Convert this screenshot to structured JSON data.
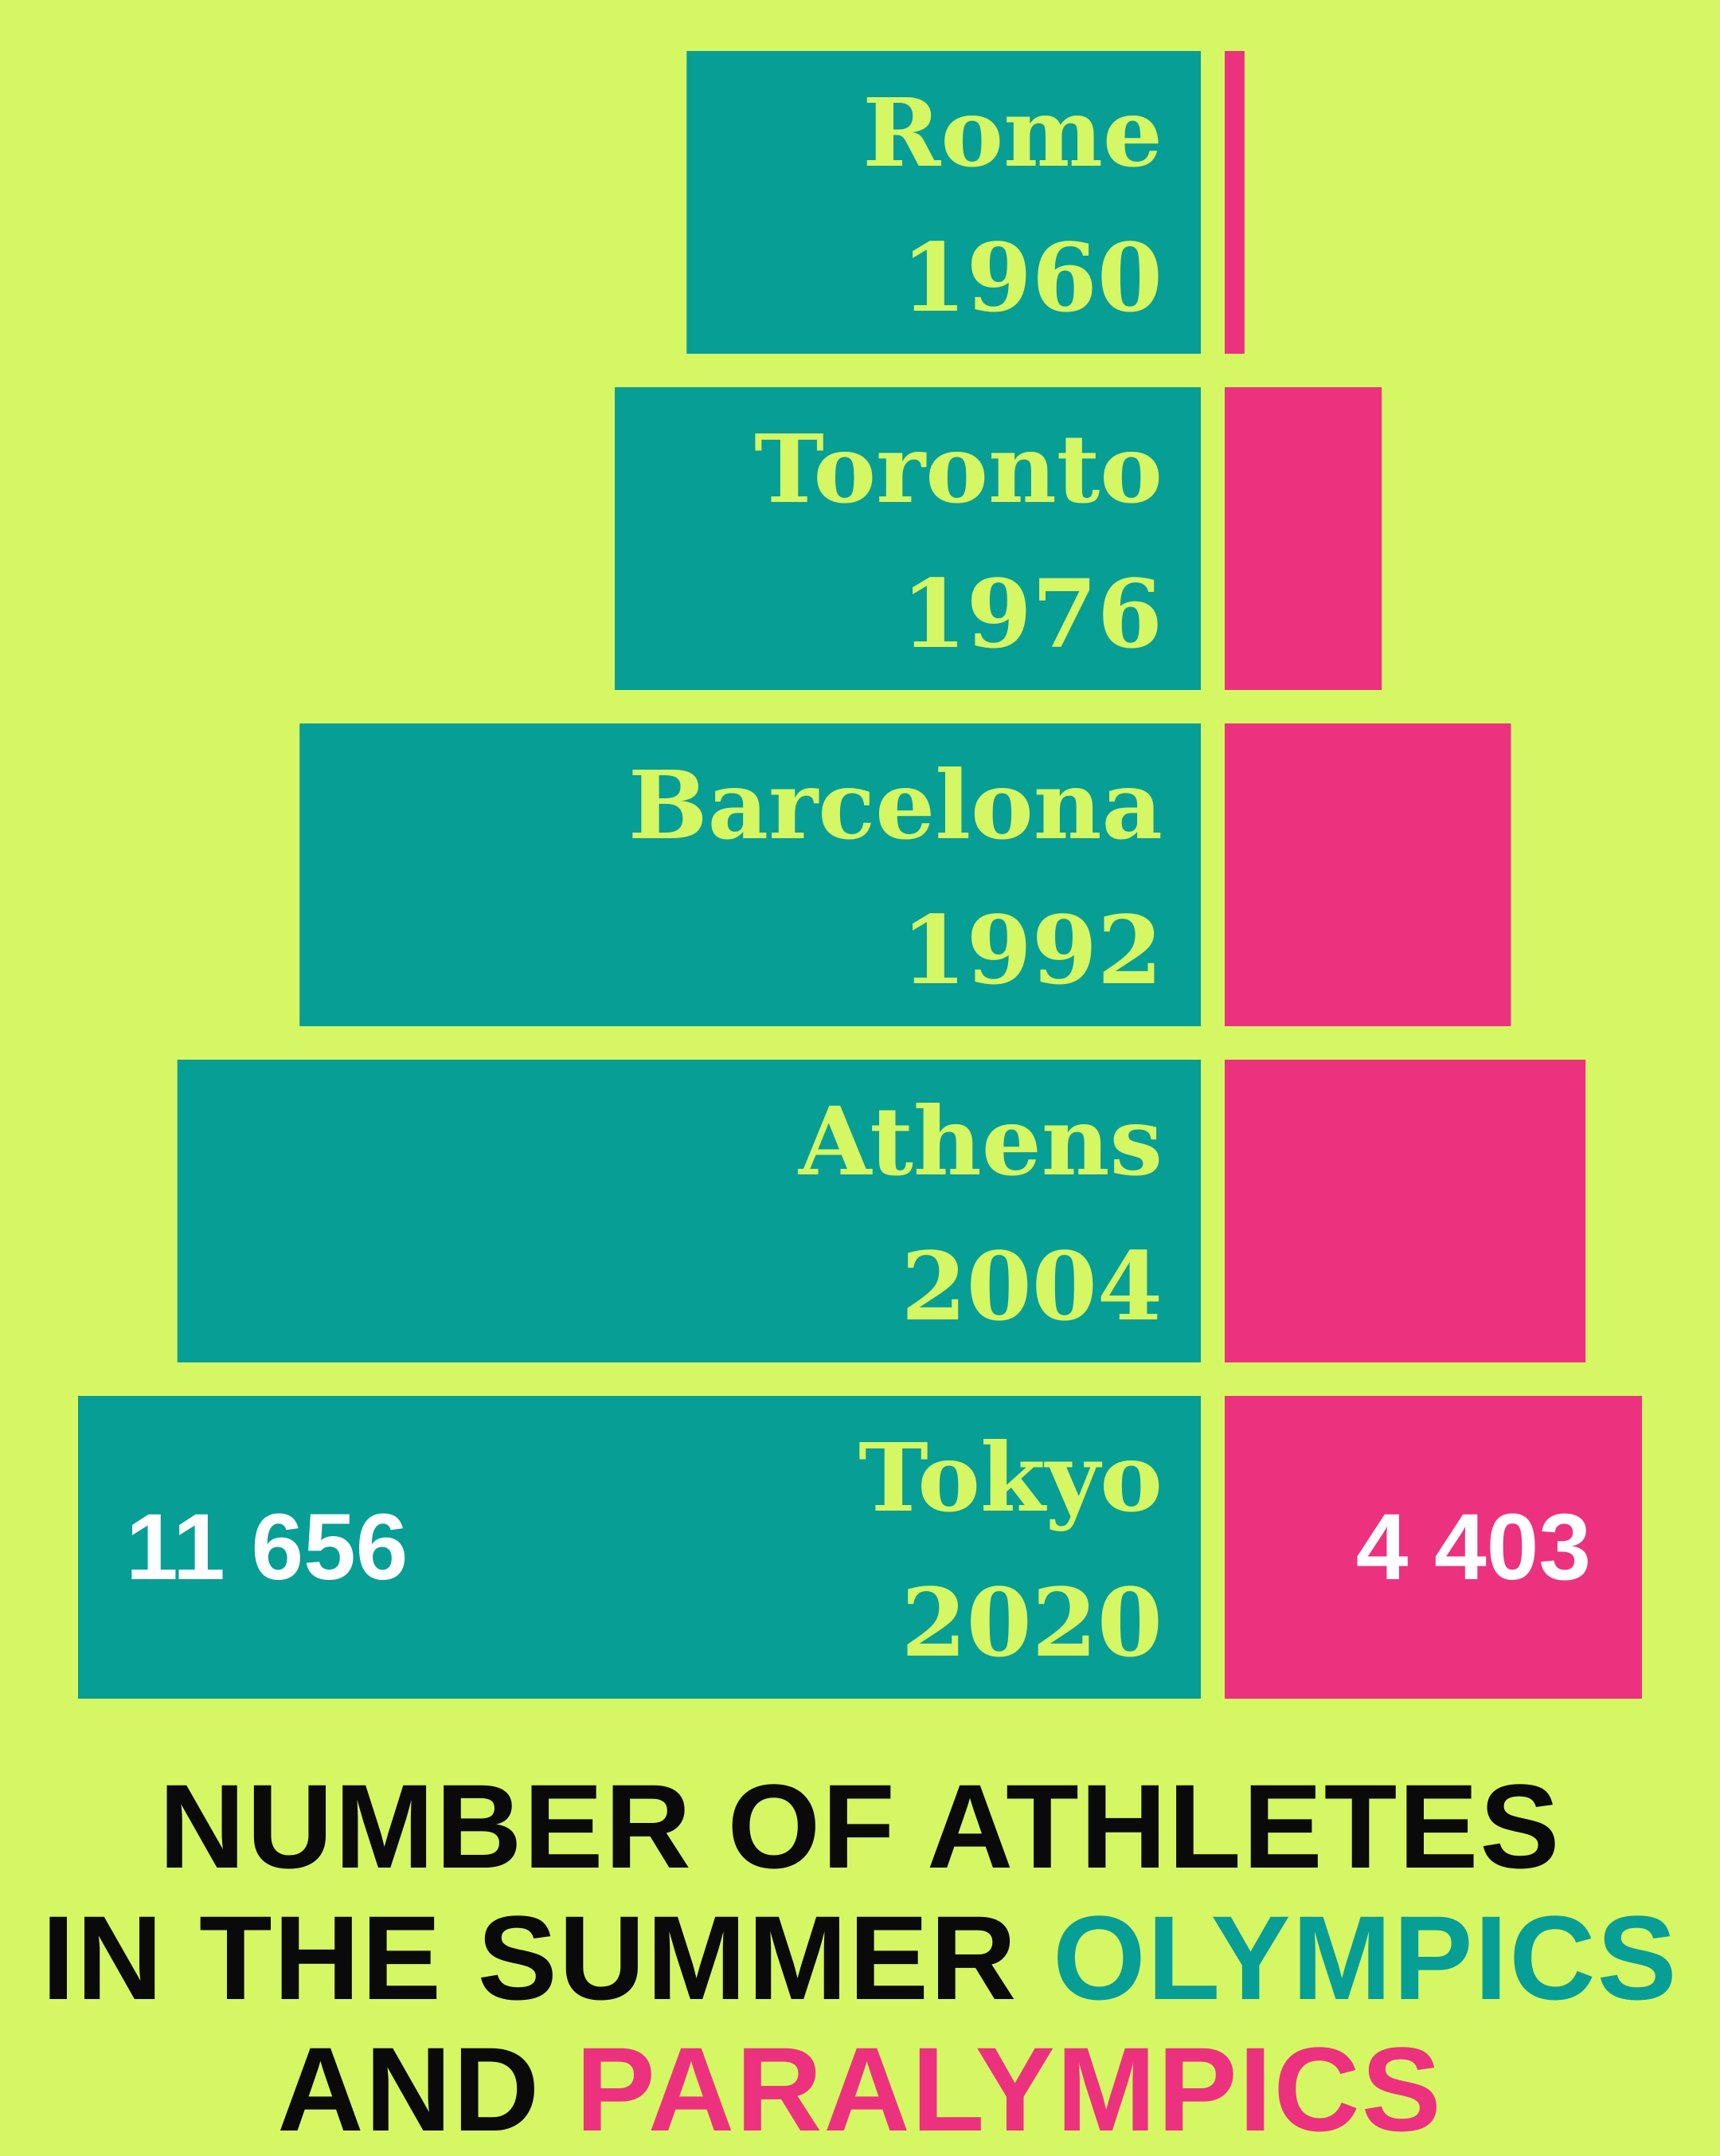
{
  "colors": {
    "background": "#d5f763",
    "olympics": "#079e96",
    "paralympics": "#ec327e",
    "label_text": "#d5f763",
    "value_text": "#ffffff",
    "title_text": "#0a0a0a"
  },
  "chart_data": {
    "type": "bar",
    "orientation": "horizontal-back-to-back",
    "series": [
      {
        "name": "OLYMPICS",
        "values": [
          5338,
          6084,
          9356,
          10625,
          11656
        ]
      },
      {
        "name": "PARALYMPICS",
        "values": [
          209,
          1657,
          3020,
          3808,
          4403
        ]
      }
    ],
    "rows": [
      {
        "city": "Rome",
        "year": "1960"
      },
      {
        "city": "Toronto",
        "year": "1976"
      },
      {
        "city": "Barcelona",
        "year": "1992"
      },
      {
        "city": "Athens",
        "year": "2004"
      },
      {
        "city": "Tokyo",
        "year": "2020"
      }
    ],
    "labeled_values": {
      "olympics": "11 656",
      "paralympics": "4 403"
    }
  },
  "title": {
    "line1": "NUMBER OF ATHLETES",
    "line2_prefix": "IN THE SUMMER ",
    "line2_highlight": "OLYMPICS",
    "line3_prefix": "AND ",
    "line3_highlight": "PARALYMPICS"
  }
}
